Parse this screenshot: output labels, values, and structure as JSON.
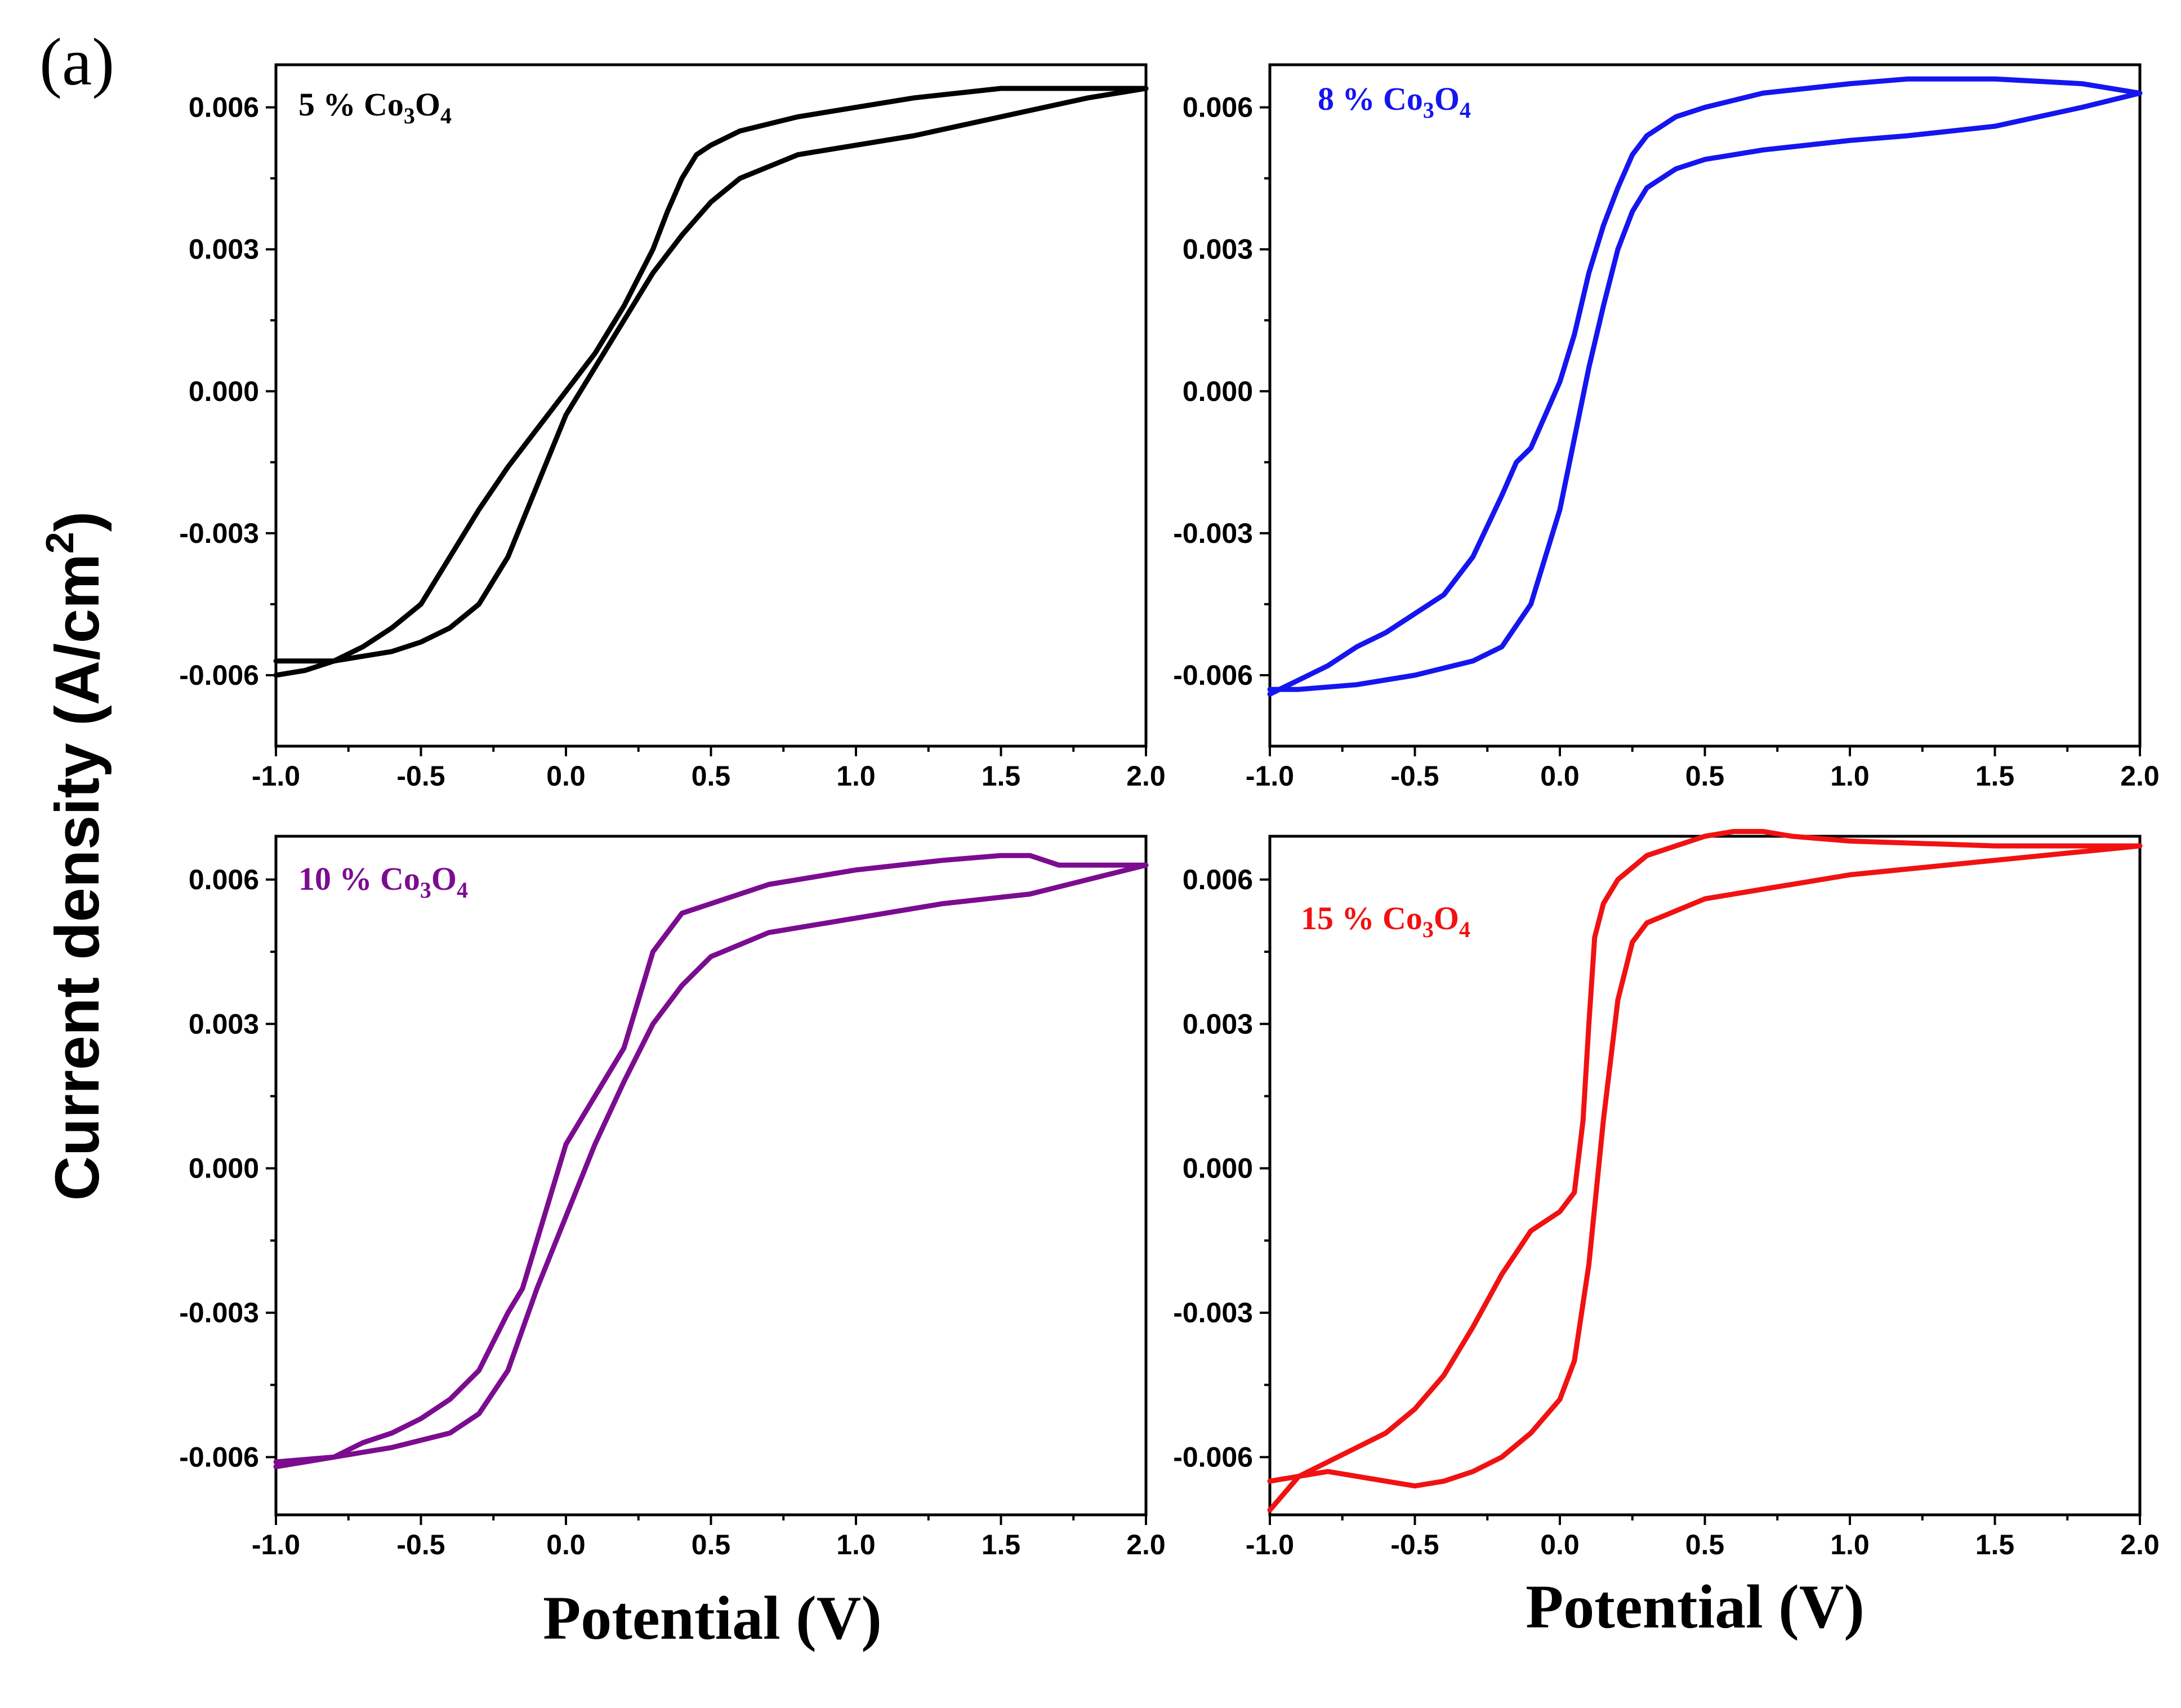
{
  "figure": {
    "panel_label": "(a)",
    "ylabel_main": "Current density (A/cm",
    "ylabel_sup": "2",
    "ylabel_close": ")",
    "xlabel_left": "Potential (V)",
    "xlabel_right": "Potential (V)"
  },
  "chart_data": [
    {
      "type": "line",
      "title": {
        "prefix": "5 % ",
        "base1": "Co",
        "sub1": "3",
        "base2": "O",
        "sub2": "4"
      },
      "color": "#000000",
      "xlabel": "Potential (V)",
      "ylabel": "Current density (A/cm2)",
      "xlim": [
        -1.0,
        2.0
      ],
      "ylim": [
        -0.0075,
        0.0069
      ],
      "xticks": [
        -1.0,
        -0.5,
        0.0,
        0.5,
        1.0,
        1.5,
        2.0
      ],
      "xtick_labels": [
        "-1.0",
        "-0.5",
        "0.0",
        "0.5",
        "1.0",
        "1.5",
        "2.0"
      ],
      "yticks": [
        -0.006,
        -0.003,
        0.0,
        0.003,
        0.006
      ],
      "ytick_labels": [
        "-0.006",
        "-0.003",
        "0.000",
        "0.003",
        "0.006"
      ],
      "series": [
        {
          "name": "5 % Co3O4",
          "x": [
            -1.0,
            -0.9,
            -0.8,
            -0.7,
            -0.6,
            -0.5,
            -0.4,
            -0.3,
            -0.2,
            -0.1,
            0.0,
            0.1,
            0.2,
            0.3,
            0.4,
            0.5,
            0.6,
            0.8,
            1.0,
            1.2,
            1.5,
            1.8,
            2.0,
            1.8,
            1.5,
            1.2,
            1.0,
            0.8,
            0.6,
            0.5,
            0.45,
            0.4,
            0.35,
            0.3,
            0.2,
            0.1,
            0.0,
            -0.1,
            -0.2,
            -0.3,
            -0.4,
            -0.5,
            -0.6,
            -0.7,
            -0.8,
            -0.9,
            -1.0
          ],
          "y": [
            -0.0057,
            -0.0057,
            -0.0057,
            -0.0056,
            -0.0055,
            -0.0053,
            -0.005,
            -0.0045,
            -0.0035,
            -0.002,
            -0.0005,
            0.0005,
            0.0015,
            0.0025,
            0.0033,
            0.004,
            0.0045,
            0.005,
            0.0052,
            0.0054,
            0.0058,
            0.0062,
            0.0064,
            0.0064,
            0.0064,
            0.0062,
            0.006,
            0.0058,
            0.0055,
            0.0052,
            0.005,
            0.0045,
            0.0038,
            0.003,
            0.0018,
            0.0008,
            0.0,
            -0.0008,
            -0.0016,
            -0.0025,
            -0.0035,
            -0.0045,
            -0.005,
            -0.0054,
            -0.0057,
            -0.0059,
            -0.006
          ]
        }
      ]
    },
    {
      "type": "line",
      "title": {
        "prefix": "8 % ",
        "base1": "Co",
        "sub1": "3",
        "base2": "O",
        "sub2": "4"
      },
      "color": "#1515f0",
      "xlabel": "Potential (V)",
      "ylabel": "Current density (A/cm2)",
      "xlim": [
        -1.0,
        2.0
      ],
      "ylim": [
        -0.0075,
        0.0069
      ],
      "xticks": [
        -1.0,
        -0.5,
        0.0,
        0.5,
        1.0,
        1.5,
        2.0
      ],
      "xtick_labels": [
        "-1.0",
        "-0.5",
        "0.0",
        "0.5",
        "1.0",
        "1.5",
        "2.0"
      ],
      "yticks": [
        -0.006,
        -0.003,
        0.0,
        0.003,
        0.006
      ],
      "ytick_labels": [
        "-0.006",
        "-0.003",
        "0.000",
        "0.003",
        "0.006"
      ],
      "series": [
        {
          "name": "8 % Co3O4",
          "x": [
            -1.0,
            -0.9,
            -0.7,
            -0.5,
            -0.3,
            -0.2,
            -0.1,
            0.0,
            0.05,
            0.1,
            0.15,
            0.2,
            0.25,
            0.3,
            0.4,
            0.5,
            0.7,
            1.0,
            1.2,
            1.5,
            1.8,
            2.0,
            1.8,
            1.5,
            1.2,
            1.0,
            0.7,
            0.5,
            0.4,
            0.3,
            0.25,
            0.2,
            0.15,
            0.1,
            0.05,
            0.0,
            -0.05,
            -0.1,
            -0.15,
            -0.2,
            -0.3,
            -0.4,
            -0.5,
            -0.6,
            -0.7,
            -0.8,
            -0.9,
            -1.0
          ],
          "y": [
            -0.0063,
            -0.0063,
            -0.0062,
            -0.006,
            -0.0057,
            -0.0054,
            -0.0045,
            -0.0025,
            -0.001,
            0.0005,
            0.0018,
            0.003,
            0.0038,
            0.0043,
            0.0047,
            0.0049,
            0.0051,
            0.0053,
            0.0054,
            0.0056,
            0.006,
            0.0063,
            0.0065,
            0.0066,
            0.0066,
            0.0065,
            0.0063,
            0.006,
            0.0058,
            0.0054,
            0.005,
            0.0043,
            0.0035,
            0.0025,
            0.0012,
            0.0002,
            -0.0005,
            -0.0012,
            -0.0015,
            -0.0022,
            -0.0035,
            -0.0043,
            -0.0047,
            -0.0051,
            -0.0054,
            -0.0058,
            -0.0061,
            -0.0064
          ]
        }
      ]
    },
    {
      "type": "line",
      "title": {
        "prefix": "10 % ",
        "base1": "Co",
        "sub1": "3",
        "base2": "O",
        "sub2": "4"
      },
      "color": "#7b0c90",
      "xlabel": "Potential (V)",
      "ylabel": "Current density (A/cm2)",
      "xlim": [
        -1.0,
        2.0
      ],
      "ylim": [
        -0.0072,
        0.0069
      ],
      "xticks": [
        -1.0,
        -0.5,
        0.0,
        0.5,
        1.0,
        1.5,
        2.0
      ],
      "xtick_labels": [
        "-1.0",
        "-0.5",
        "0.0",
        "0.5",
        "1.0",
        "1.5",
        "2.0"
      ],
      "yticks": [
        -0.006,
        -0.003,
        0.0,
        0.003,
        0.006
      ],
      "ytick_labels": [
        "-0.006",
        "-0.003",
        "0.000",
        "0.003",
        "0.006"
      ],
      "series": [
        {
          "name": "10 % Co3O4",
          "x": [
            -1.0,
            -0.8,
            -0.6,
            -0.4,
            -0.3,
            -0.2,
            -0.1,
            0.0,
            0.1,
            0.2,
            0.3,
            0.4,
            0.5,
            0.7,
            1.0,
            1.3,
            1.6,
            1.8,
            2.0,
            1.7,
            1.6,
            1.5,
            1.3,
            1.0,
            0.7,
            0.5,
            0.4,
            0.3,
            0.25,
            0.2,
            0.1,
            0.0,
            -0.1,
            -0.15,
            -0.2,
            -0.3,
            -0.4,
            -0.5,
            -0.6,
            -0.7,
            -0.8,
            -0.9,
            -1.0
          ],
          "y": [
            -0.0061,
            -0.006,
            -0.0058,
            -0.0055,
            -0.0051,
            -0.0042,
            -0.0025,
            -0.001,
            0.0005,
            0.0018,
            0.003,
            0.0038,
            0.0044,
            0.0049,
            0.0052,
            0.0055,
            0.0057,
            0.006,
            0.0063,
            0.0063,
            0.0065,
            0.0065,
            0.0064,
            0.0062,
            0.0059,
            0.0055,
            0.0053,
            0.0045,
            0.0035,
            0.0025,
            0.0015,
            0.0005,
            -0.0015,
            -0.0025,
            -0.003,
            -0.0042,
            -0.0048,
            -0.0052,
            -0.0055,
            -0.0057,
            -0.006,
            -0.0061,
            -0.0062
          ]
        }
      ]
    },
    {
      "type": "line",
      "title": {
        "prefix": "15 % ",
        "base1": "Co",
        "sub1": "3",
        "base2": "O",
        "sub2": "4"
      },
      "color": "#f01212",
      "xlabel": "Potential (V)",
      "ylabel": "Current density (A/cm2)",
      "xlim": [
        -1.0,
        2.0
      ],
      "ylim": [
        -0.0072,
        0.0069
      ],
      "xticks": [
        -1.0,
        -0.5,
        0.0,
        0.5,
        1.0,
        1.5,
        2.0
      ],
      "xtick_labels": [
        "-1.0",
        "-0.5",
        "0.0",
        "0.5",
        "1.0",
        "1.5",
        "2.0"
      ],
      "yticks": [
        -0.006,
        -0.003,
        0.0,
        0.003,
        0.006
      ],
      "ytick_labels": [
        "-0.006",
        "-0.003",
        "0.000",
        "0.003",
        "0.006"
      ],
      "series": [
        {
          "name": "15 % Co3O4",
          "x": [
            -1.0,
            -0.9,
            -0.8,
            -0.7,
            -0.6,
            -0.5,
            -0.4,
            -0.3,
            -0.2,
            -0.1,
            0.0,
            0.05,
            0.1,
            0.15,
            0.2,
            0.25,
            0.3,
            0.5,
            0.7,
            1.0,
            1.5,
            2.0,
            1.5,
            1.0,
            0.8,
            0.7,
            0.6,
            0.5,
            0.3,
            0.2,
            0.15,
            0.12,
            0.1,
            0.08,
            0.05,
            0.0,
            -0.1,
            -0.2,
            -0.3,
            -0.4,
            -0.5,
            -0.6,
            -0.7,
            -0.8,
            -0.9,
            -1.0
          ],
          "y": [
            -0.0065,
            -0.0064,
            -0.0063,
            -0.0064,
            -0.0065,
            -0.0066,
            -0.0065,
            -0.0063,
            -0.006,
            -0.0055,
            -0.0048,
            -0.004,
            -0.002,
            0.001,
            0.0035,
            0.0047,
            0.0051,
            0.0056,
            0.0058,
            0.0061,
            0.0064,
            0.0067,
            0.0067,
            0.0068,
            0.0069,
            0.007,
            0.007,
            0.0069,
            0.0065,
            0.006,
            0.0055,
            0.0048,
            0.003,
            0.001,
            -0.0005,
            -0.0009,
            -0.0013,
            -0.0022,
            -0.0033,
            -0.0043,
            -0.005,
            -0.0055,
            -0.0058,
            -0.0061,
            -0.0064,
            -0.0071
          ]
        }
      ]
    }
  ]
}
